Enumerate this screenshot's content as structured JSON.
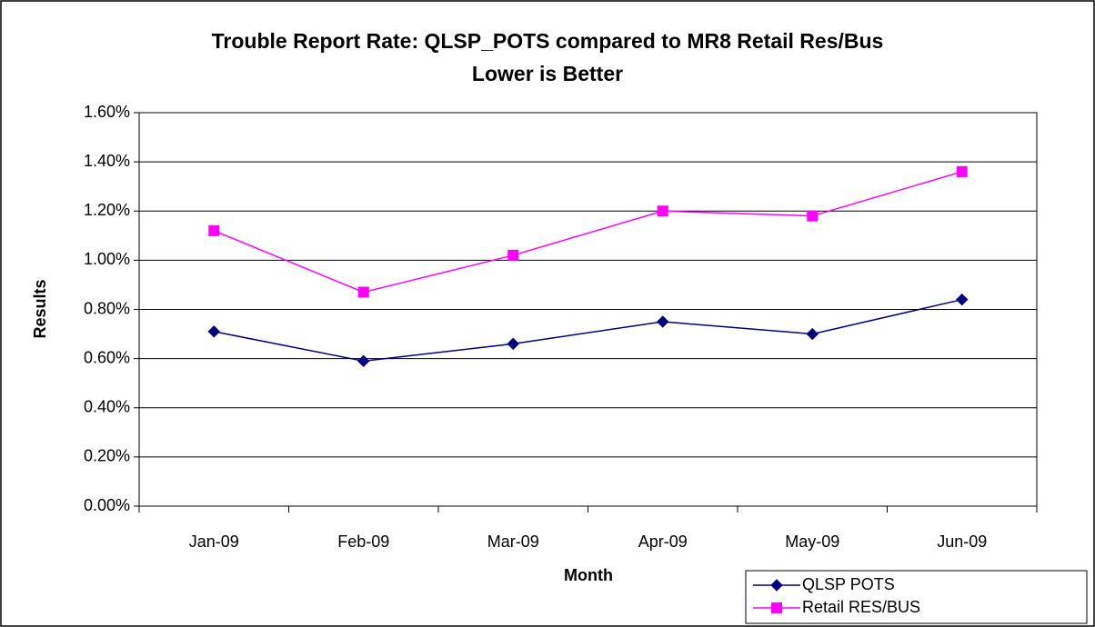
{
  "chart_data": {
    "type": "line",
    "title": "Trouble Report Rate: QLSP_POTS compared to MR8 Retail Res/Bus",
    "subtitle": "Lower is Better",
    "x_label": "Month",
    "y_label": "Results",
    "categories": [
      "Jan-09",
      "Feb-09",
      "Mar-09",
      "Apr-09",
      "May-09",
      "Jun-09"
    ],
    "series": [
      {
        "name": "QLSP POTS",
        "color": "#000080",
        "marker": "diamond",
        "values": [
          0.71,
          0.59,
          0.66,
          0.75,
          0.7,
          0.84
        ]
      },
      {
        "name": "Retail RES/BUS",
        "color": "#ff00ff",
        "marker": "square",
        "values": [
          1.12,
          0.87,
          1.02,
          1.2,
          1.18,
          1.36
        ]
      }
    ],
    "ylim": [
      0,
      1.6
    ],
    "yticks": [
      {
        "value": 0,
        "label": "0.00%"
      },
      {
        "value": 0.2,
        "label": "0.20%"
      },
      {
        "value": 0.4,
        "label": "0.40%"
      },
      {
        "value": 0.6,
        "label": "0.60%"
      },
      {
        "value": 0.8,
        "label": "0.80%"
      },
      {
        "value": 1.0,
        "label": "1.00%"
      },
      {
        "value": 1.2,
        "label": "1.20%"
      },
      {
        "value": 1.4,
        "label": "1.40%"
      },
      {
        "value": 1.6,
        "label": "1.60%"
      }
    ],
    "grid": true,
    "legend": "bottom-right"
  }
}
